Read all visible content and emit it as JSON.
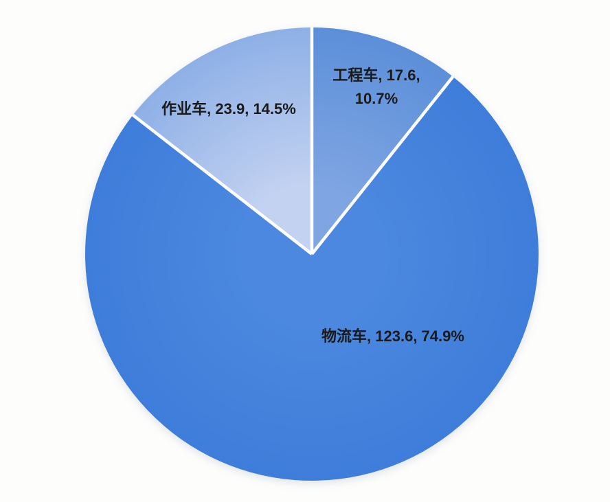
{
  "background_color": "#fdfdfc",
  "chart_data": {
    "type": "pie",
    "title": "",
    "legend_position": "none",
    "start_angle_deg": 0,
    "direction": "clockwise",
    "label_format": "name, value, percent",
    "separator_color": "#ffffff",
    "text_color": "#1a1a1a",
    "slices": [
      {
        "name": "工程车",
        "value": 17.6,
        "percent": 10.7,
        "color": "#5c8fd9",
        "color_center": "#7fa5e2",
        "label_lines": [
          "工程车, 17.6,",
          "10.7%"
        ]
      },
      {
        "name": "物流车",
        "value": 123.6,
        "percent": 74.9,
        "color": "#3e7dda",
        "color_center": "#4c88df",
        "label_lines": [
          "物流车, 123.6, 74.9%"
        ]
      },
      {
        "name": "作业车",
        "value": 23.9,
        "percent": 14.5,
        "color": "#8eb0e6",
        "color_center": "#c3d2f1",
        "label_lines": [
          "作业车, 23.9, 14.5%"
        ]
      }
    ]
  }
}
